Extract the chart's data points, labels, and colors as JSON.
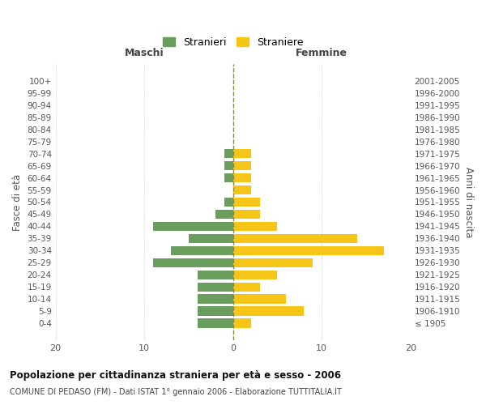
{
  "age_groups": [
    "100+",
    "95-99",
    "90-94",
    "85-89",
    "80-84",
    "75-79",
    "70-74",
    "65-69",
    "60-64",
    "55-59",
    "50-54",
    "45-49",
    "40-44",
    "35-39",
    "30-34",
    "25-29",
    "20-24",
    "15-19",
    "10-14",
    "5-9",
    "0-4"
  ],
  "birth_years": [
    "≤ 1905",
    "1906-1910",
    "1911-1915",
    "1916-1920",
    "1921-1925",
    "1926-1930",
    "1931-1935",
    "1936-1940",
    "1941-1945",
    "1946-1950",
    "1951-1955",
    "1956-1960",
    "1961-1965",
    "1966-1970",
    "1971-1975",
    "1976-1980",
    "1981-1985",
    "1986-1990",
    "1991-1995",
    "1996-2000",
    "2001-2005"
  ],
  "maschi": [
    0,
    0,
    0,
    0,
    0,
    0,
    1,
    1,
    1,
    0,
    1,
    2,
    9,
    5,
    7,
    9,
    4,
    4,
    4,
    4,
    4
  ],
  "femmine": [
    0,
    0,
    0,
    0,
    0,
    0,
    2,
    2,
    2,
    2,
    3,
    3,
    5,
    14,
    17,
    9,
    5,
    3,
    6,
    8,
    2
  ],
  "maschi_color": "#6a9e5e",
  "femmine_color": "#f5c518",
  "background_color": "#ffffff",
  "grid_color": "#cccccc",
  "title": "Popolazione per cittadinanza straniera per età e sesso - 2006",
  "subtitle": "COMUNE DI PEDASO (FM) - Dati ISTAT 1° gennaio 2006 - Elaborazione TUTTITALIA.IT",
  "xlabel_left": "Maschi",
  "xlabel_right": "Femmine",
  "ylabel_left": "Fasce di età",
  "ylabel_right": "Anni di nascita",
  "legend_maschi": "Stranieri",
  "legend_femmine": "Straniere",
  "xlim": 20,
  "dashed_line_color": "#888844",
  "bar_height": 0.75
}
